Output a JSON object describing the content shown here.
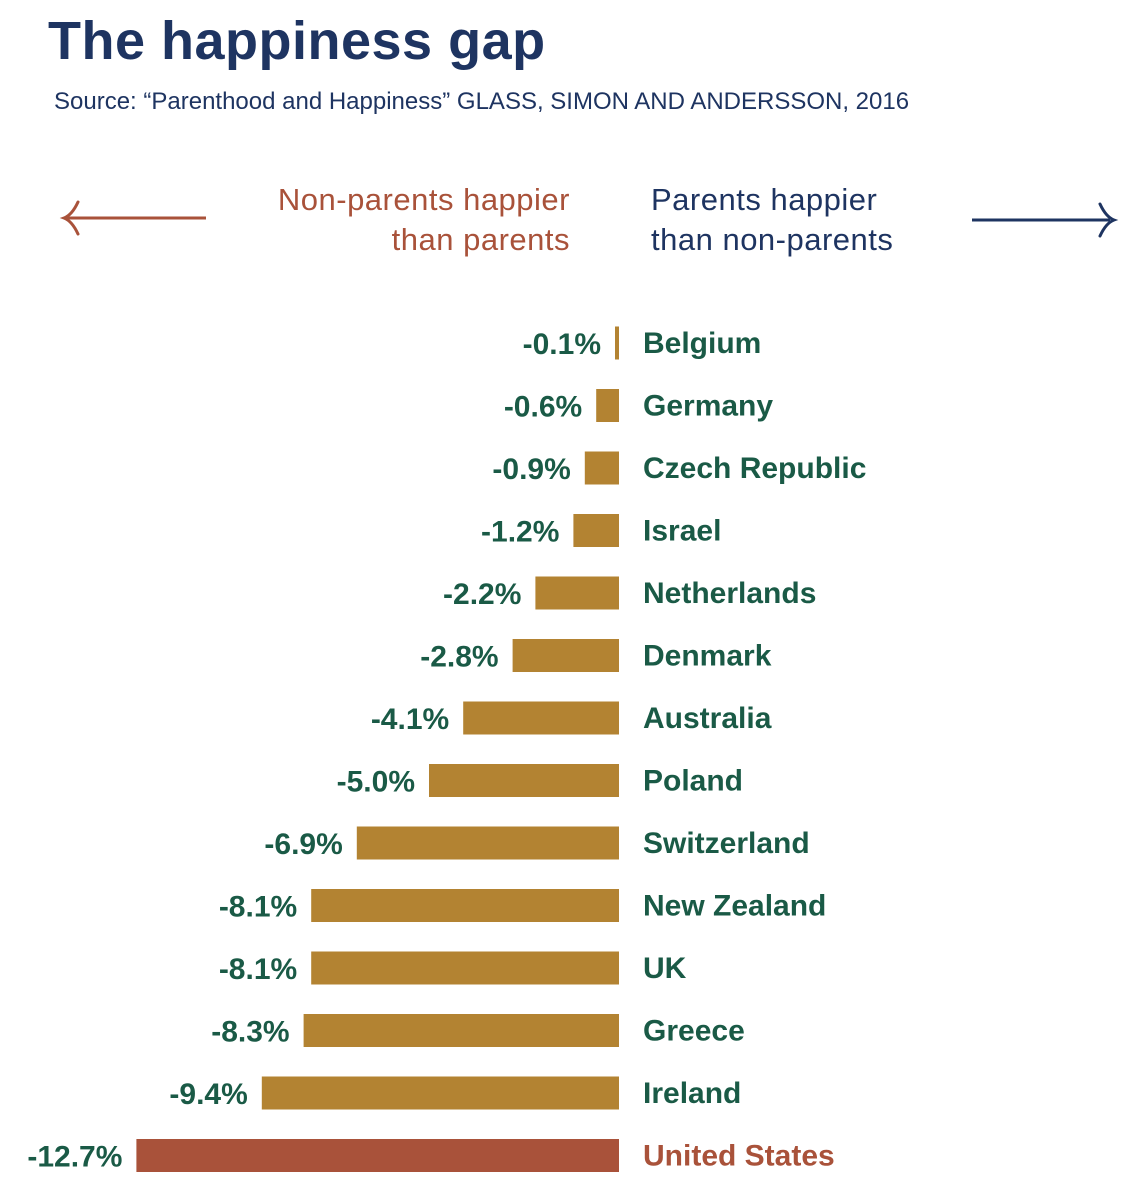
{
  "header": {
    "title": "The happiness gap",
    "subtitle": "Source: “Parenthood and Happiness” GLASS, SIMON AND ANDERSSON, 2016"
  },
  "legend": {
    "left_line1": "Non-parents happier",
    "left_line2": "than parents",
    "right_line1": "Parents happier",
    "right_line2": "than non-parents"
  },
  "colors": {
    "title": "#1e3461",
    "bar": "#b38332",
    "highlight": "#a9523a",
    "label": "#1a5a46"
  },
  "chart_data": {
    "type": "bar",
    "orientation": "horizontal",
    "title": "The happiness gap",
    "xlabel": "",
    "ylabel": "",
    "xlim": [
      -12.7,
      0
    ],
    "categories": [
      "Belgium",
      "Germany",
      "Czech Republic",
      "Israel",
      "Netherlands",
      "Denmark",
      "Australia",
      "Poland",
      "Switzerland",
      "New Zealand",
      "UK",
      "Greece",
      "Ireland",
      "United States"
    ],
    "values": [
      -0.1,
      -0.6,
      -0.9,
      -1.2,
      -2.2,
      -2.8,
      -4.1,
      -5.0,
      -6.9,
      -8.1,
      -8.1,
      -8.3,
      -9.4,
      -12.7
    ],
    "value_labels": [
      "-0.1%",
      "-0.6%",
      "-0.9%",
      "-1.2%",
      "-2.2%",
      "-2.8%",
      "-4.1%",
      "-5.0%",
      "-6.9%",
      "-8.1%",
      "-8.1%",
      "-8.3%",
      "-9.4%",
      "-12.7%"
    ],
    "highlight": "United States"
  }
}
